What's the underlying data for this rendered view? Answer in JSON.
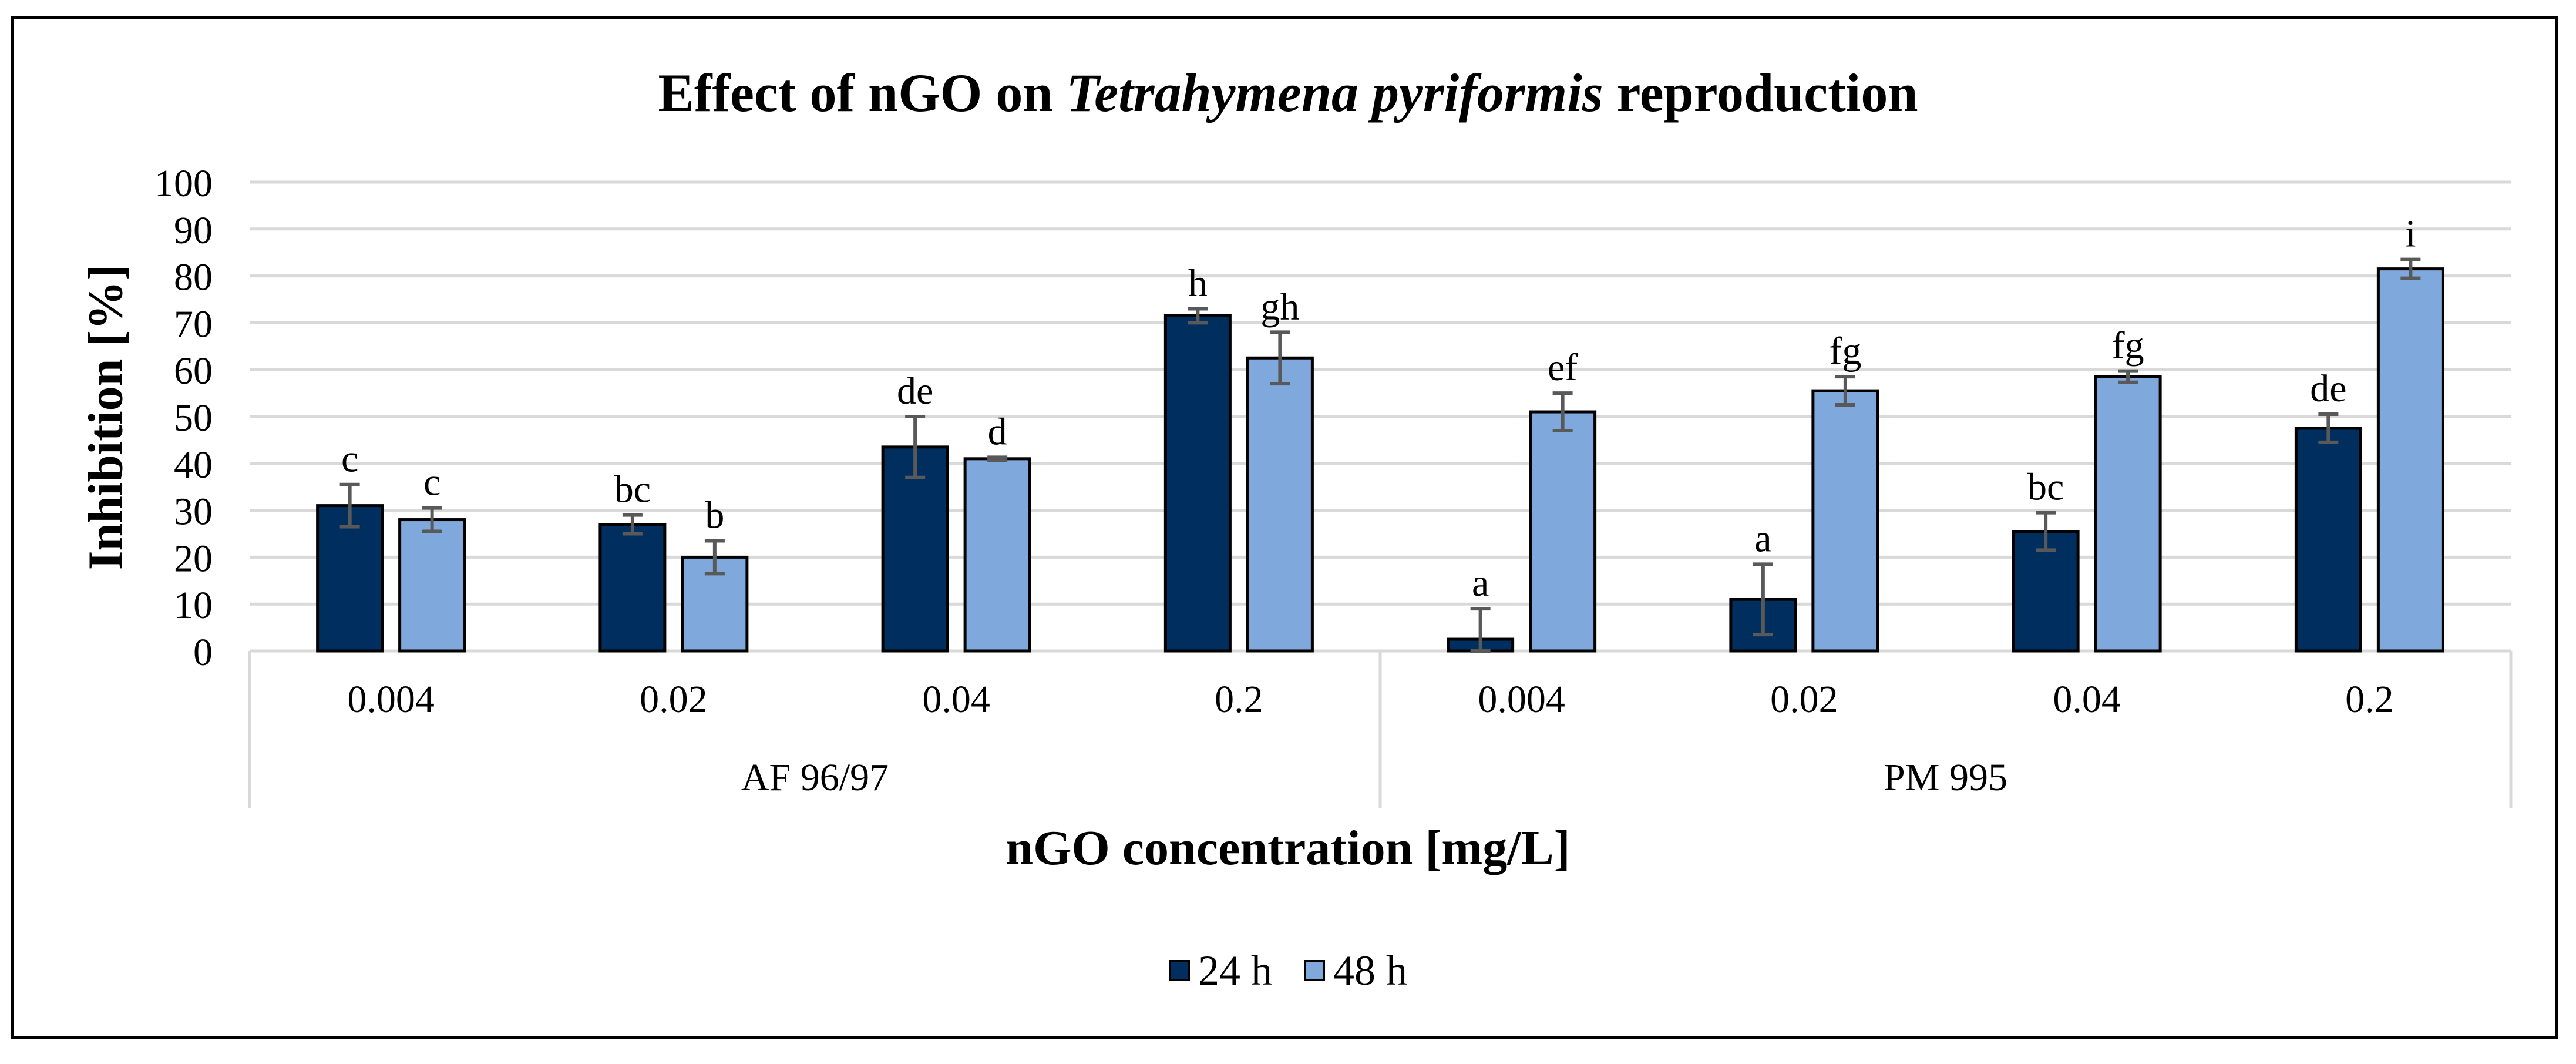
{
  "chart_data": {
    "type": "bar",
    "title_prefix": "Effect of nGO on ",
    "title_italic": "Tetrahymena pyriformis",
    "title_suffix": " reproduction",
    "xlabel": "nGO concentration [mg/L]",
    "ylabel": "Inhibition [%]",
    "ylim": [
      0,
      100
    ],
    "yticks": [
      0,
      10,
      20,
      30,
      40,
      50,
      60,
      70,
      80,
      90,
      100
    ],
    "grid": true,
    "legend_position": "bottom",
    "groups": [
      {
        "name": "AF 96/97",
        "categories": [
          "0.004",
          "0.02",
          "0.04",
          "0.2"
        ]
      },
      {
        "name": "PM 995",
        "categories": [
          "0.004",
          "0.02",
          "0.04",
          "0.2"
        ]
      }
    ],
    "series": [
      {
        "name": "24 h",
        "color": "#002F5F",
        "values": [
          31,
          27,
          43.5,
          71.5,
          2.5,
          11,
          25.5,
          47.5
        ],
        "errors": [
          4.5,
          2,
          6.5,
          1.5,
          6.5,
          7.5,
          4,
          3
        ],
        "labels": [
          "c",
          "bc",
          "de",
          "h",
          "a",
          "a",
          "bc",
          "de"
        ]
      },
      {
        "name": "48 h",
        "color": "#7FA9DD",
        "values": [
          28,
          20,
          41,
          62.5,
          51,
          55.5,
          58.5,
          81.5
        ],
        "errors": [
          2.5,
          3.5,
          0.3,
          5.5,
          4,
          3,
          1.2,
          2
        ],
        "labels": [
          "c",
          "b",
          "d",
          "gh",
          "ef",
          "fg",
          "fg",
          "i"
        ]
      }
    ]
  }
}
